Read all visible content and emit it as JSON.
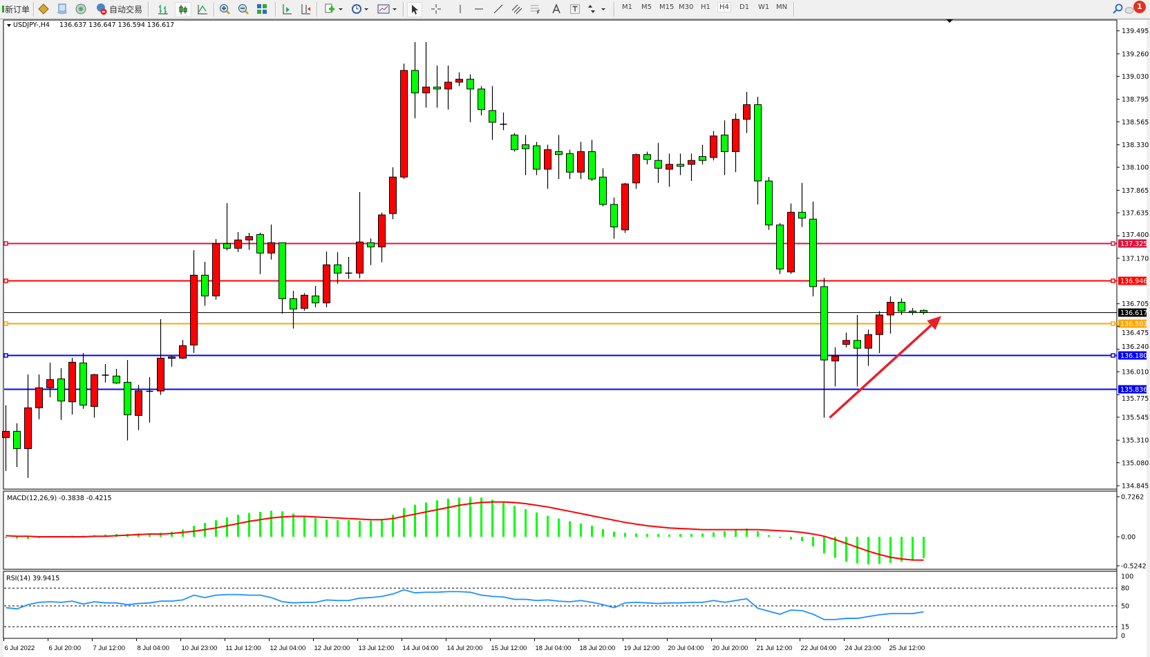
{
  "toolbar": {
    "new_order_label": "新订单",
    "auto_trading_label": "自动交易",
    "timeframes": [
      "M1",
      "M5",
      "M15",
      "M30",
      "H1",
      "H4",
      "D1",
      "W1",
      "MN"
    ],
    "active_timeframe": "H4",
    "notification_count": "1"
  },
  "chart_header": {
    "symbol_label": "USDJPY-,H4",
    "ohlc_label": "136.637 136.647 136.594 136.617"
  },
  "colors": {
    "bull_candle": "#ff0000",
    "bear_candle": "#00ff00",
    "macd_histogram": "#00ff00",
    "macd_signal": "#ff0000",
    "rsi_line": "#1e90ff",
    "arrow": "#e8202a"
  },
  "chart_data": {
    "type": "candlestick",
    "symbol": "USDJPY-",
    "timeframe": "H4",
    "price_axis_ticks": [
      "139.495",
      "139.260",
      "139.030",
      "138.795",
      "138.565",
      "138.330",
      "138.100",
      "137.865",
      "137.635",
      "137.400",
      "137.170",
      "136.705",
      "136.475",
      "136.240",
      "136.010",
      "135.775",
      "135.545",
      "135.310",
      "135.080",
      "134.845"
    ],
    "price_range": [
      134.845,
      139.495
    ],
    "time_labels": [
      {
        "label": "6 Jul 2022",
        "bar": 0
      },
      {
        "label": "6 Jul 20:00",
        "bar": 4
      },
      {
        "label": "7 Jul 12:00",
        "bar": 8
      },
      {
        "label": "8 Jul 04:00",
        "bar": 12
      },
      {
        "label": "10 Jul 23:00",
        "bar": 16
      },
      {
        "label": "11 Jul 12:00",
        "bar": 20
      },
      {
        "label": "12 Jul 04:00",
        "bar": 24
      },
      {
        "label": "12 Jul 20:00",
        "bar": 28
      },
      {
        "label": "13 Jul 12:00",
        "bar": 32
      },
      {
        "label": "14 Jul 04:00",
        "bar": 36
      },
      {
        "label": "14 Jul 20:00",
        "bar": 40
      },
      {
        "label": "15 Jul 12:00",
        "bar": 44
      },
      {
        "label": "18 Jul 04:00",
        "bar": 48
      },
      {
        "label": "18 Jul 20:00",
        "bar": 52
      },
      {
        "label": "19 Jul 12:00",
        "bar": 56
      },
      {
        "label": "20 Jul 04:00",
        "bar": 60
      },
      {
        "label": "20 Jul 20:00",
        "bar": 64
      },
      {
        "label": "21 Jul 12:00",
        "bar": 68
      },
      {
        "label": "22 Jul 04:00",
        "bar": 72
      },
      {
        "label": "24 Jul 23:00",
        "bar": 76
      },
      {
        "label": "25 Jul 12:00",
        "bar": 80
      }
    ],
    "candles": [
      [
        135.337,
        135.667,
        134.996,
        135.401
      ],
      [
        135.401,
        135.483,
        135.036,
        135.224
      ],
      [
        135.224,
        135.982,
        134.925,
        135.641
      ],
      [
        135.641,
        135.982,
        135.525,
        135.846
      ],
      [
        135.846,
        136.102,
        135.749,
        135.93
      ],
      [
        135.937,
        136.046,
        135.518,
        135.711
      ],
      [
        135.702,
        136.152,
        135.573,
        136.107
      ],
      [
        136.1,
        136.201,
        135.631,
        135.669
      ],
      [
        135.655,
        135.989,
        135.54,
        135.98
      ],
      [
        135.975,
        136.088,
        135.9,
        135.975
      ],
      [
        135.966,
        136.039,
        135.886,
        135.895
      ],
      [
        135.902,
        136.13,
        135.307,
        135.57
      ],
      [
        135.563,
        135.876,
        135.413,
        135.815
      ],
      [
        135.806,
        135.954,
        135.49,
        135.81
      ],
      [
        135.813,
        136.547,
        135.773,
        136.149
      ],
      [
        136.149,
        136.178,
        136.062,
        136.161
      ],
      [
        136.149,
        136.335,
        136.14,
        136.276
      ],
      [
        136.283,
        137.253,
        136.203,
        136.997
      ],
      [
        136.997,
        137.133,
        136.684,
        136.785
      ],
      [
        136.785,
        137.366,
        136.747,
        137.319
      ],
      [
        137.319,
        137.734,
        137.249,
        137.272
      ],
      [
        137.272,
        137.437,
        137.234,
        137.357
      ],
      [
        137.357,
        137.43,
        137.256,
        137.392
      ],
      [
        137.413,
        137.432,
        137.008,
        137.223
      ],
      [
        137.223,
        137.515,
        137.157,
        137.329
      ],
      [
        137.329,
        137.329,
        136.604,
        136.757
      ],
      [
        136.757,
        136.837,
        136.451,
        136.651
      ],
      [
        136.658,
        136.813,
        136.634,
        136.792
      ],
      [
        136.785,
        136.886,
        136.669,
        136.714
      ],
      [
        136.714,
        137.239,
        136.669,
        137.103
      ],
      [
        137.103,
        137.232,
        136.91,
        137.018
      ],
      [
        137.018,
        137.183,
        136.959,
        137.018
      ],
      [
        137.018,
        137.847,
        136.966,
        137.336
      ],
      [
        137.329,
        137.373,
        137.1,
        137.286
      ],
      [
        137.286,
        137.637,
        137.129,
        137.613
      ],
      [
        137.627,
        138.1,
        137.57,
        138.0
      ],
      [
        138.0,
        139.16,
        137.98,
        139.09
      ],
      [
        139.09,
        139.38,
        138.6,
        138.86
      ],
      [
        138.86,
        139.38,
        138.71,
        138.92
      ],
      [
        138.92,
        139.14,
        138.71,
        138.9
      ],
      [
        138.9,
        139.14,
        138.69,
        138.97
      ],
      [
        138.97,
        139.07,
        138.93,
        139.0
      ],
      [
        139.0,
        139.05,
        138.56,
        138.9
      ],
      [
        138.9,
        138.93,
        138.63,
        138.69
      ],
      [
        138.68,
        138.93,
        138.38,
        138.56
      ],
      [
        138.54,
        138.66,
        138.48,
        138.54
      ],
      [
        138.43,
        138.45,
        138.26,
        138.28
      ],
      [
        138.33,
        138.43,
        138.02,
        138.29
      ],
      [
        138.32,
        138.36,
        138.02,
        138.08
      ],
      [
        138.08,
        138.33,
        137.88,
        138.28
      ],
      [
        138.26,
        138.43,
        137.98,
        138.23
      ],
      [
        138.24,
        138.28,
        137.98,
        138.05
      ],
      [
        138.05,
        138.36,
        137.98,
        138.26
      ],
      [
        138.26,
        138.38,
        137.96,
        137.98
      ],
      [
        138.0,
        138.09,
        137.7,
        137.72
      ],
      [
        137.72,
        137.79,
        137.37,
        137.49
      ],
      [
        137.46,
        137.94,
        137.43,
        137.93
      ],
      [
        137.94,
        138.24,
        137.88,
        138.23
      ],
      [
        138.23,
        138.26,
        138.13,
        138.18
      ],
      [
        138.17,
        138.35,
        137.94,
        138.09
      ],
      [
        138.08,
        138.24,
        137.9,
        138.13
      ],
      [
        138.13,
        138.24,
        138.02,
        138.11
      ],
      [
        138.13,
        138.24,
        137.96,
        138.17
      ],
      [
        138.21,
        138.33,
        138.13,
        138.17
      ],
      [
        138.2,
        138.47,
        138.17,
        138.42
      ],
      [
        138.43,
        138.58,
        138.02,
        138.26
      ],
      [
        138.26,
        138.65,
        138.05,
        138.59
      ],
      [
        138.59,
        138.87,
        138.45,
        138.74
      ],
      [
        138.74,
        138.82,
        137.72,
        137.96
      ],
      [
        137.96,
        138.0,
        137.46,
        137.51
      ],
      [
        137.51,
        137.53,
        137.01,
        137.06
      ],
      [
        137.03,
        137.73,
        137.01,
        137.64
      ],
      [
        137.64,
        137.94,
        137.49,
        137.58
      ],
      [
        137.57,
        137.75,
        136.78,
        136.88
      ],
      [
        136.88,
        136.97,
        135.54,
        136.13
      ],
      [
        136.12,
        136.26,
        135.86,
        136.17
      ],
      [
        136.29,
        136.41,
        136.26,
        136.33
      ],
      [
        136.33,
        136.59,
        135.86,
        136.25
      ],
      [
        136.25,
        136.44,
        136.07,
        136.39
      ],
      [
        136.39,
        136.63,
        136.2,
        136.59
      ],
      [
        136.59,
        136.78,
        136.4,
        136.72
      ],
      [
        136.72,
        136.76,
        136.59,
        136.63
      ],
      [
        136.63,
        136.66,
        136.59,
        136.62
      ],
      [
        136.637,
        136.647,
        136.594,
        136.617
      ]
    ],
    "candle_fields": [
      "open",
      "high",
      "low",
      "close"
    ],
    "horizontal_lines": [
      {
        "price": 137.325,
        "label": "137.325",
        "color": "#dc143c",
        "marker": true
      },
      {
        "price": 136.946,
        "label": "136.946",
        "color": "#ff0000",
        "marker": true
      },
      {
        "price": 136.503,
        "label": "136.503",
        "color": "#ffa500",
        "marker": true
      },
      {
        "price": 136.18,
        "label": "136.180",
        "color": "#0000ff",
        "marker": true
      },
      {
        "price": 135.836,
        "label": "135.836",
        "color": "#0000ff",
        "marker": false
      }
    ],
    "bid_line": {
      "price": 136.617,
      "label": "136.617",
      "color": "#000000"
    },
    "arrow_annotation": {
      "from": {
        "bar": 74.5,
        "price": 135.54
      },
      "to": {
        "bar": 84.6,
        "price": 136.58
      }
    },
    "macd": {
      "label": "MACD(12,26,9) -0.3838 -0.4215",
      "axis_ticks": [
        "0.7262",
        "0.00",
        "-0.5242"
      ],
      "range": [
        -0.5242,
        0.7262
      ],
      "histogram": [
        -0.02,
        -0.03,
        -0.04,
        -0.02,
        0.0,
        0.01,
        0.02,
        0.02,
        0.03,
        0.04,
        0.05,
        0.05,
        0.06,
        0.06,
        0.07,
        0.09,
        0.13,
        0.2,
        0.25,
        0.3,
        0.35,
        0.4,
        0.43,
        0.45,
        0.47,
        0.46,
        0.42,
        0.37,
        0.34,
        0.31,
        0.3,
        0.3,
        0.29,
        0.29,
        0.32,
        0.4,
        0.52,
        0.58,
        0.62,
        0.66,
        0.69,
        0.71,
        0.72,
        0.71,
        0.67,
        0.62,
        0.56,
        0.5,
        0.44,
        0.38,
        0.33,
        0.28,
        0.24,
        0.2,
        0.14,
        0.09,
        0.07,
        0.06,
        0.05,
        0.05,
        0.04,
        0.05,
        0.05,
        0.06,
        0.08,
        0.1,
        0.12,
        0.15,
        0.1,
        0.03,
        -0.02,
        -0.05,
        -0.08,
        -0.17,
        -0.3,
        -0.38,
        -0.45,
        -0.48,
        -0.5,
        -0.49,
        -0.47,
        -0.45,
        -0.42,
        -0.3838
      ],
      "signal": [
        0.02,
        0.01,
        0.01,
        0.0,
        0.0,
        0.0,
        0.0,
        0.0,
        0.01,
        0.01,
        0.02,
        0.03,
        0.04,
        0.05,
        0.05,
        0.06,
        0.08,
        0.1,
        0.13,
        0.16,
        0.2,
        0.24,
        0.28,
        0.31,
        0.34,
        0.36,
        0.37,
        0.37,
        0.36,
        0.35,
        0.34,
        0.33,
        0.32,
        0.31,
        0.31,
        0.33,
        0.37,
        0.41,
        0.45,
        0.49,
        0.53,
        0.57,
        0.6,
        0.62,
        0.63,
        0.63,
        0.62,
        0.6,
        0.57,
        0.54,
        0.5,
        0.46,
        0.42,
        0.38,
        0.34,
        0.3,
        0.26,
        0.23,
        0.2,
        0.18,
        0.16,
        0.15,
        0.14,
        0.13,
        0.13,
        0.13,
        0.13,
        0.13,
        0.13,
        0.12,
        0.11,
        0.1,
        0.08,
        0.05,
        0.01,
        -0.05,
        -0.12,
        -0.19,
        -0.26,
        -0.32,
        -0.37,
        -0.4,
        -0.42,
        -0.4215
      ]
    },
    "rsi": {
      "label": "RSI(14) 39.9415",
      "axis_ticks": [
        "100",
        "80",
        "50",
        "15",
        "0"
      ],
      "levels": [
        80,
        50,
        15
      ],
      "range": [
        0,
        100
      ],
      "values": [
        47,
        45,
        52,
        56,
        57,
        56,
        58,
        53,
        57,
        55,
        55,
        52,
        54,
        55,
        58,
        58,
        60,
        68,
        64,
        68,
        69,
        69,
        68,
        68,
        64,
        57,
        55,
        56,
        56,
        60,
        59,
        59,
        63,
        64,
        66,
        70,
        77,
        72,
        73,
        73,
        74,
        74,
        73,
        68,
        66,
        65,
        61,
        61,
        59,
        60,
        58,
        57,
        59,
        56,
        52,
        47,
        55,
        56,
        55,
        54,
        55,
        55,
        56,
        56,
        59,
        56,
        59,
        62,
        46,
        41,
        36,
        43,
        42,
        36,
        27,
        27,
        29,
        29,
        32,
        35,
        37,
        37,
        37,
        39.9415
      ]
    }
  }
}
